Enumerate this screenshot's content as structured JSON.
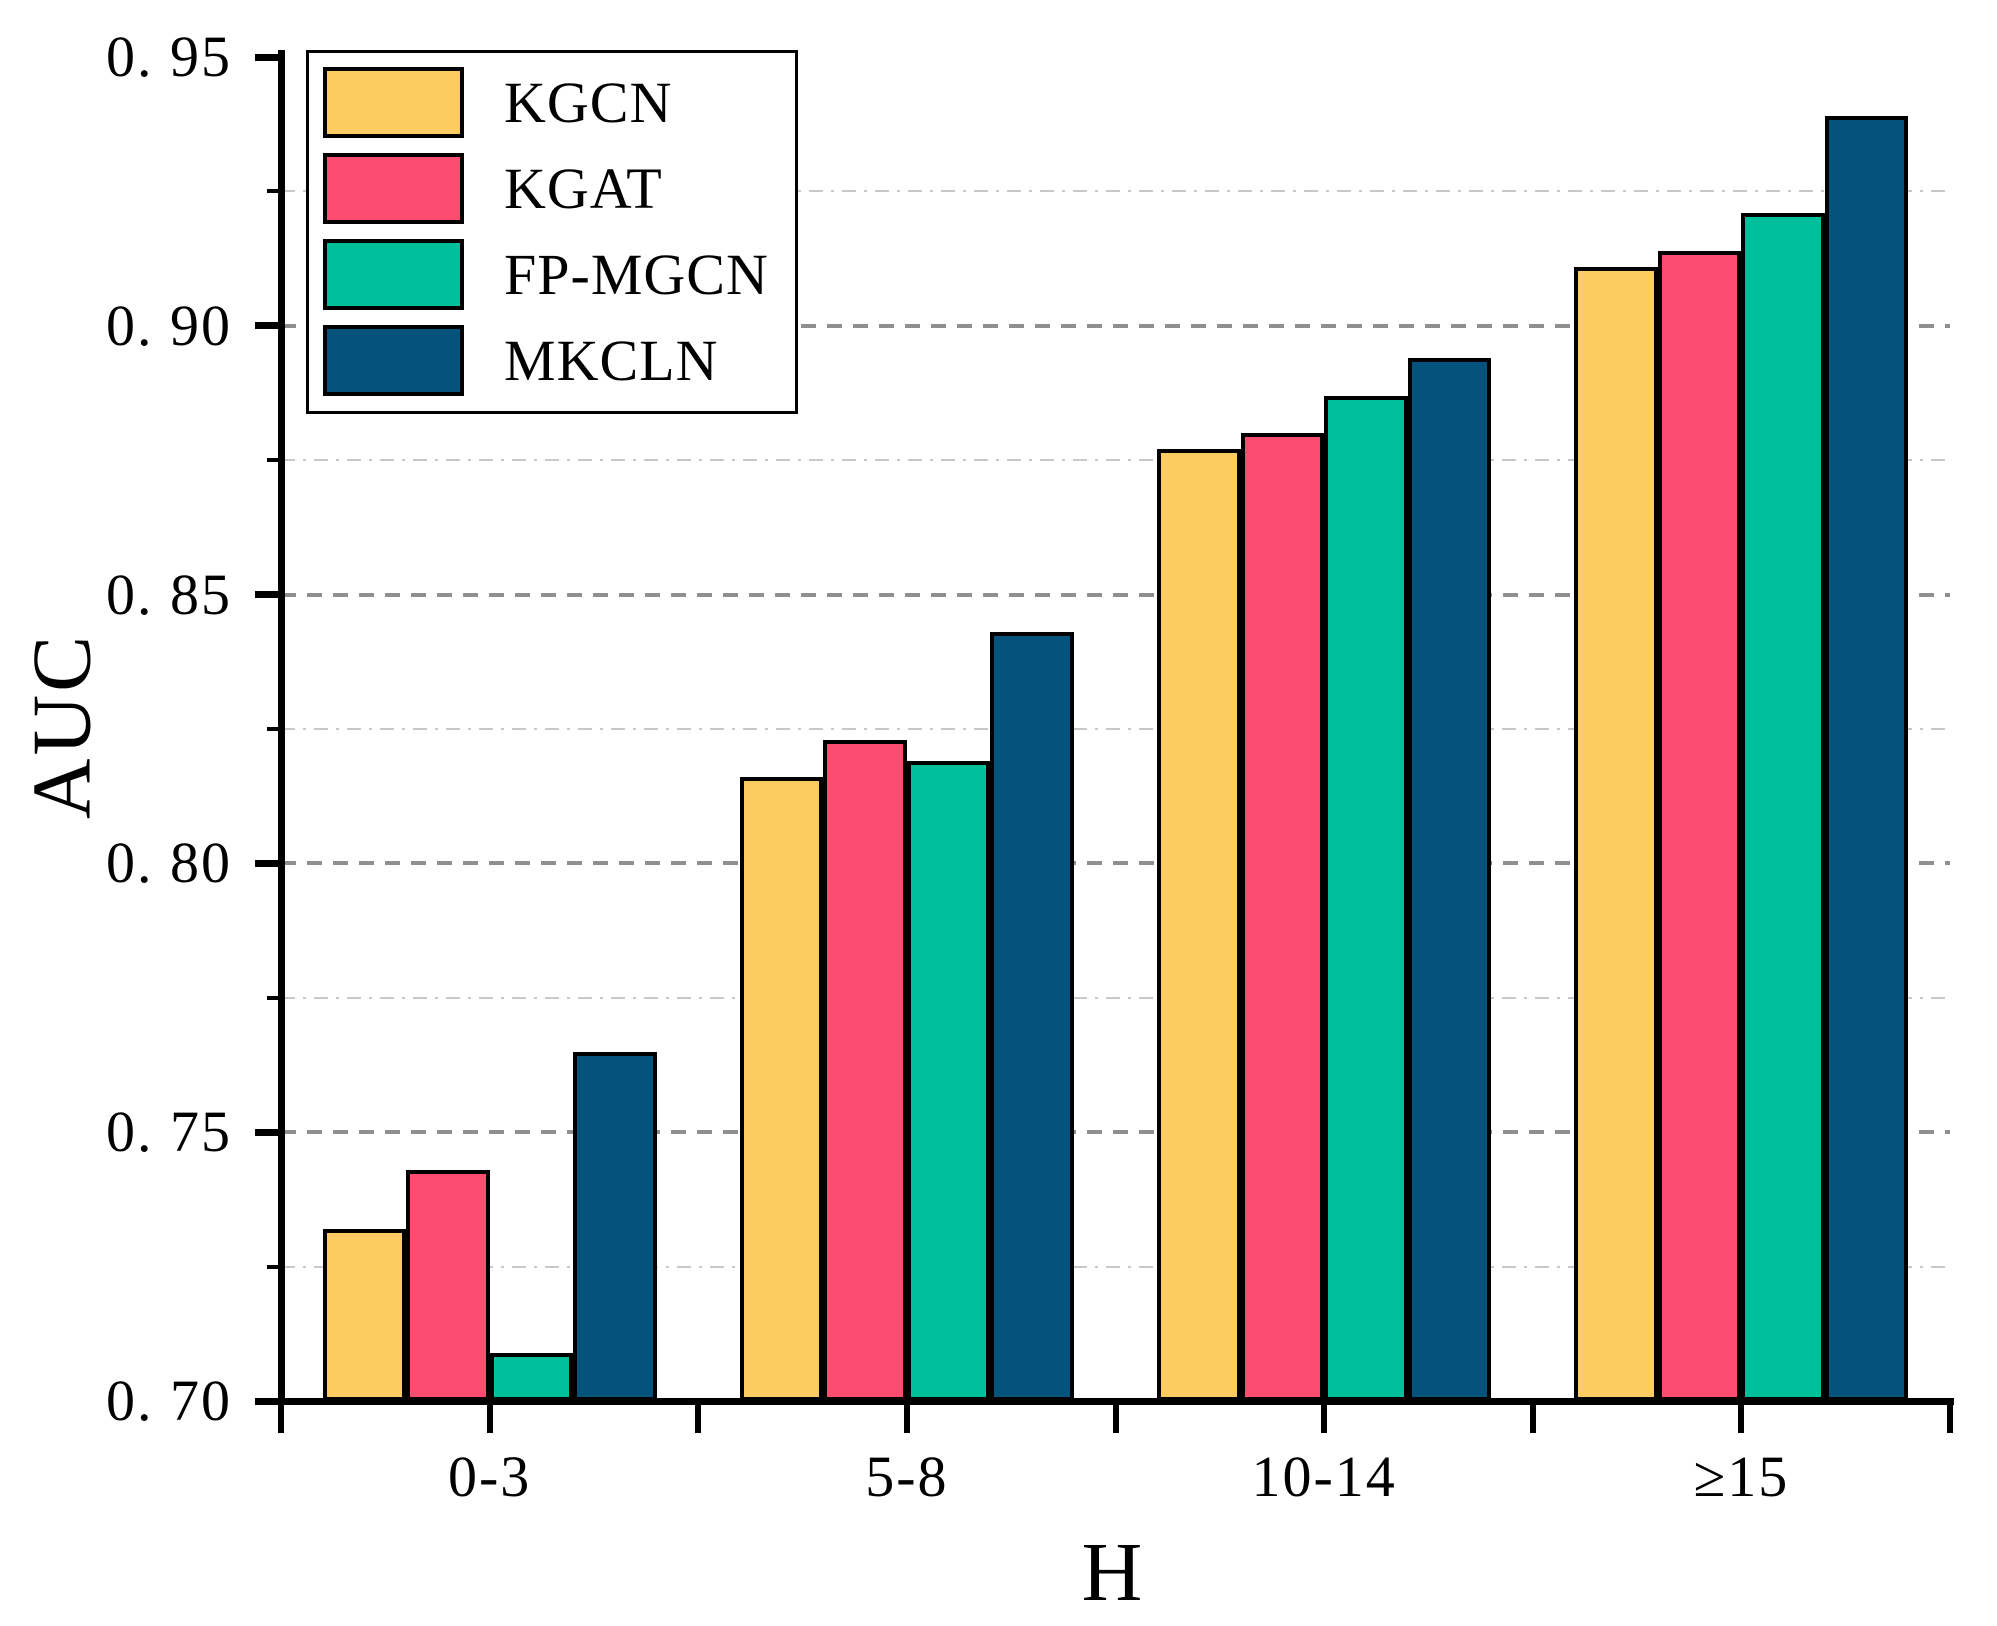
{
  "chart_data": {
    "type": "bar",
    "title": "",
    "xlabel": "H",
    "ylabel": "AUC",
    "categories": [
      "0-3",
      "5-8",
      "10-14",
      "≥15"
    ],
    "category_keys": [
      "0-3",
      "5-8",
      "10-14",
      "ge-15"
    ],
    "series": [
      {
        "name": "KGCN",
        "color": "#FCCB62",
        "values": [
          0.732,
          0.816,
          0.877,
          0.911
        ]
      },
      {
        "name": "KGAT",
        "color": "#FC4D71",
        "values": [
          0.743,
          0.823,
          0.88,
          0.914
        ]
      },
      {
        "name": "FP-MGCN",
        "color": "#00BF9B",
        "values": [
          0.709,
          0.819,
          0.887,
          0.921
        ]
      },
      {
        "name": "MKCLN",
        "color": "#04537D",
        "values": [
          0.765,
          0.843,
          0.894,
          0.939
        ]
      }
    ],
    "ylim": [
      0.7,
      0.95
    ],
    "ytick_values": [
      0.7,
      0.75,
      0.8,
      0.85,
      0.9,
      0.95
    ],
    "ytick_labels": [
      "0. 70",
      "0. 75",
      "0. 80",
      "0. 85",
      "0. 90",
      "0. 95"
    ],
    "yminor_tick_values": [
      0.725,
      0.775,
      0.825,
      0.875,
      0.925
    ],
    "grid": {
      "major_gridlines": [
        0.75,
        0.8,
        0.85,
        0.9
      ],
      "minor_gridlines": [
        0.725,
        0.775,
        0.825,
        0.875,
        0.925
      ],
      "major_color": "#8f8f8f",
      "minor_color": "#c8c8c8"
    },
    "legend": {
      "position": "top-left",
      "entries": [
        "KGCN",
        "KGAT",
        "FP-MGCN",
        "MKCLN"
      ]
    },
    "axis_color": "#000000",
    "bar_border_color": "#000000"
  }
}
